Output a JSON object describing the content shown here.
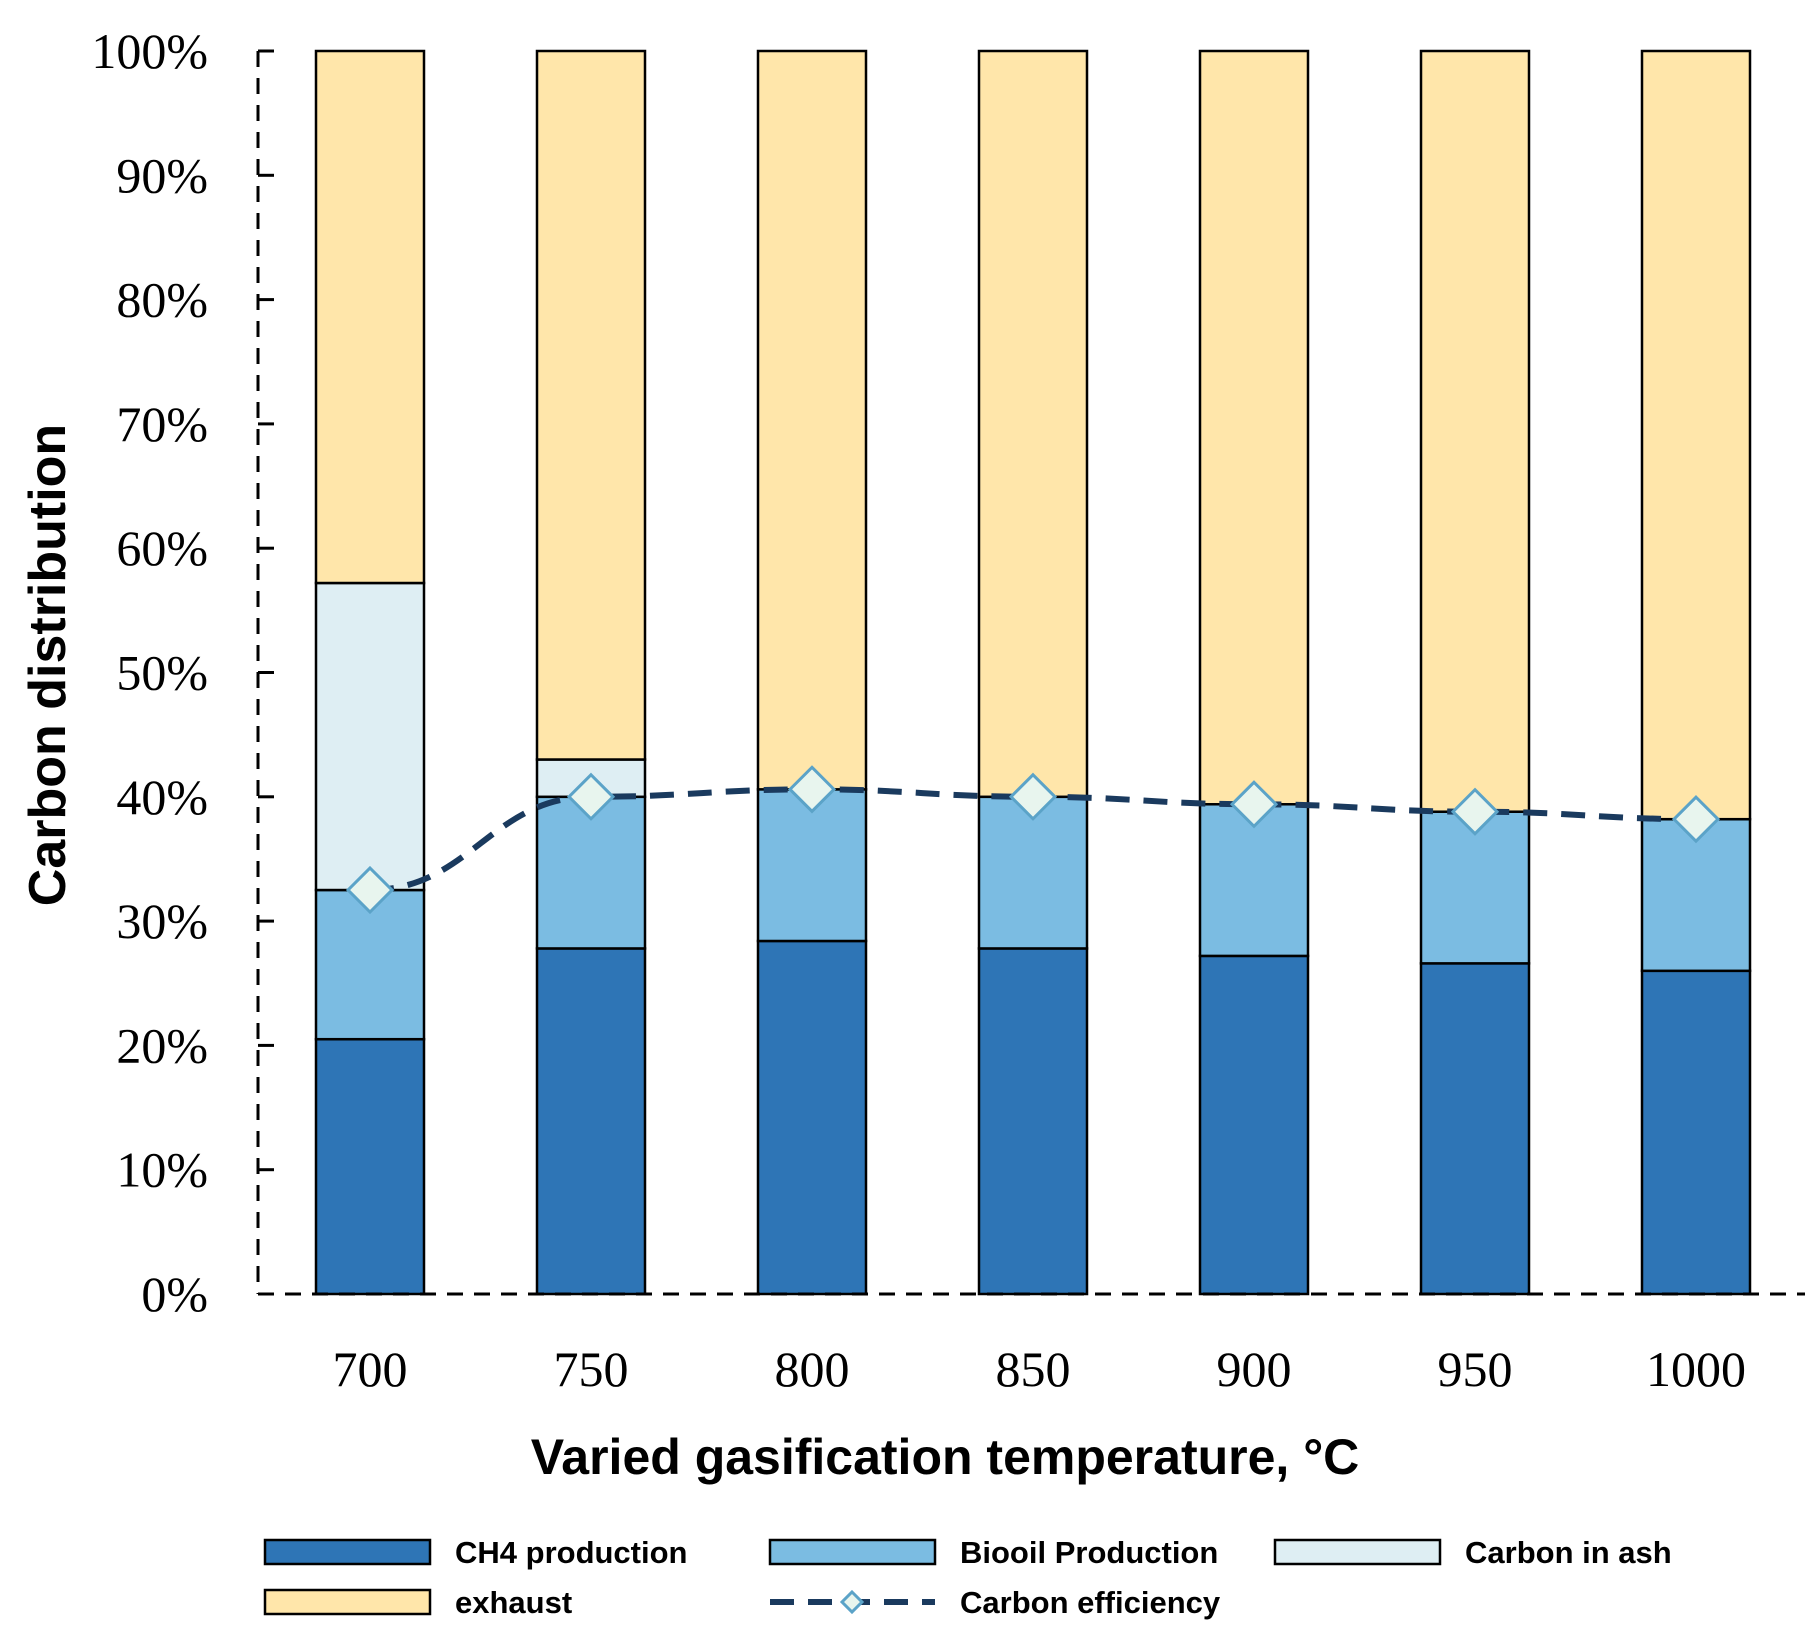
{
  "chart_data": {
    "type": "bar",
    "stacked": true,
    "categories": [
      "700",
      "750",
      "800",
      "850",
      "900",
      "950",
      "1000"
    ],
    "series": [
      {
        "name": "CH4 production",
        "color": "#2e75b6",
        "values": [
          20.5,
          27.8,
          28.4,
          27.8,
          27.2,
          26.6,
          26.0
        ]
      },
      {
        "name": "Biooil Production",
        "color": "#7bbce2",
        "values": [
          12.0,
          12.2,
          12.2,
          12.2,
          12.2,
          12.2,
          12.2
        ]
      },
      {
        "name": "Carbon in ash",
        "color": "#deeef3",
        "values": [
          24.7,
          3.0,
          0.0,
          0.0,
          0.0,
          0.0,
          0.0
        ]
      },
      {
        "name": "exhaust",
        "color": "#ffe6aa",
        "values": [
          42.8,
          57.0,
          59.4,
          60.0,
          60.6,
          61.2,
          61.8
        ]
      }
    ],
    "line": {
      "name": "Carbon efficiency",
      "color": "#1a3a5e",
      "marker_fill": "#e8f5ee",
      "marker_stroke": "#5ba3c8",
      "values": [
        32.5,
        40.0,
        40.6,
        40.0,
        39.4,
        38.8,
        38.2
      ]
    },
    "ylim": [
      0,
      100
    ],
    "yticks": [
      "0%",
      "10%",
      "20%",
      "30%",
      "40%",
      "50%",
      "60%",
      "70%",
      "80%",
      "90%",
      "100%"
    ],
    "ylabel": "Carbon distribution",
    "xlabel": "Varied gasification temperature, °C",
    "legend_position": "bottom"
  }
}
